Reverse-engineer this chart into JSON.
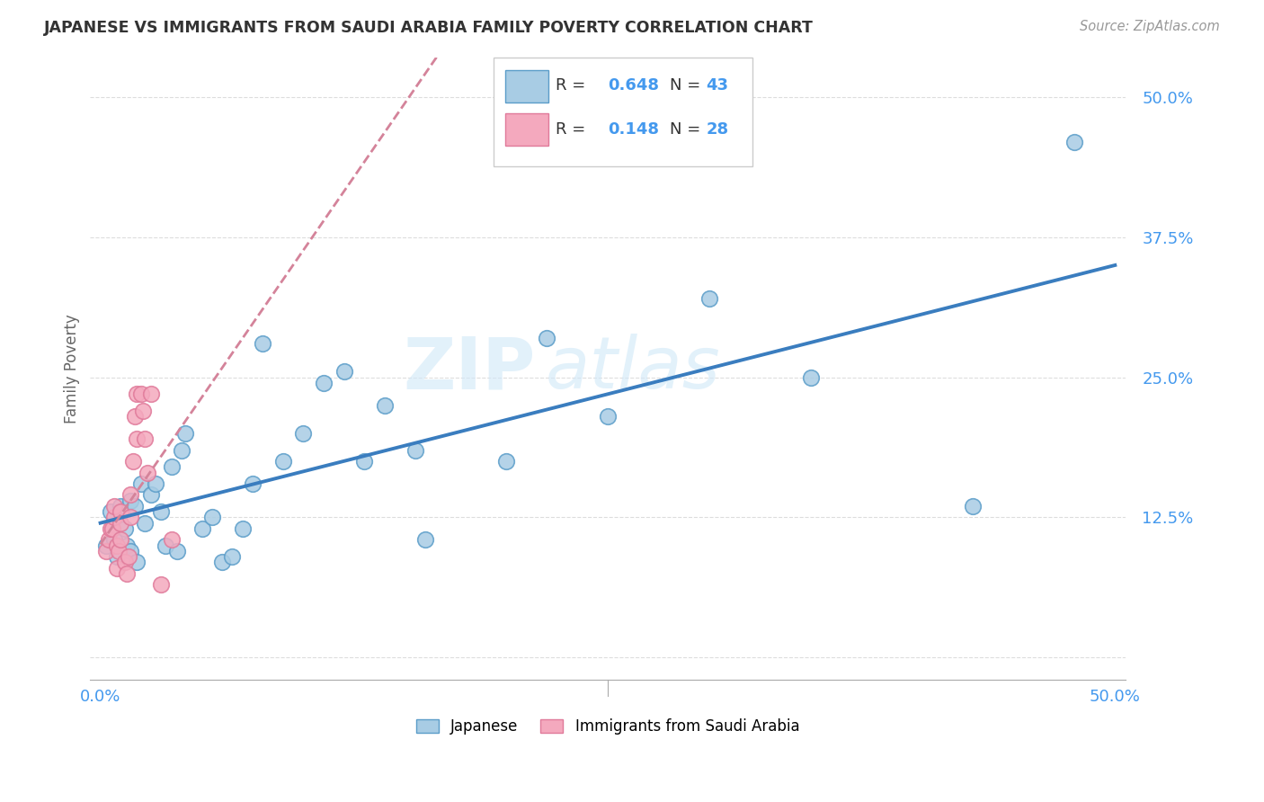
{
  "title": "JAPANESE VS IMMIGRANTS FROM SAUDI ARABIA FAMILY POVERTY CORRELATION CHART",
  "source": "Source: ZipAtlas.com",
  "ylabel": "Family Poverty",
  "watermark_part1": "ZIP",
  "watermark_part2": "atlas",
  "legend1_label": "Japanese",
  "legend2_label": "Immigrants from Saudi Arabia",
  "R1": 0.648,
  "N1": 43,
  "R2": 0.148,
  "N2": 28,
  "xlim": [
    -0.005,
    0.505
  ],
  "ylim": [
    -0.02,
    0.535
  ],
  "yticks": [
    0.0,
    0.125,
    0.25,
    0.375,
    0.5
  ],
  "ytick_labels": [
    "",
    "12.5%",
    "25.0%",
    "37.5%",
    "50.0%"
  ],
  "xticks": [
    0.0,
    0.125,
    0.25,
    0.375,
    0.5
  ],
  "xtick_labels": [
    "0.0%",
    "",
    "",
    "",
    "50.0%"
  ],
  "blue_scatter_color": "#a8cce4",
  "blue_edge_color": "#5b9dc9",
  "pink_scatter_color": "#f4a9be",
  "pink_edge_color": "#e07a9a",
  "blue_line_color": "#3a7dbf",
  "pink_line_color": "#d4839a",
  "grid_color": "#dddddd",
  "tick_label_color": "#4499ee",
  "japanese_x": [
    0.003,
    0.005,
    0.007,
    0.008,
    0.01,
    0.012,
    0.013,
    0.015,
    0.015,
    0.017,
    0.018,
    0.02,
    0.022,
    0.025,
    0.027,
    0.03,
    0.032,
    0.035,
    0.038,
    0.04,
    0.042,
    0.05,
    0.055,
    0.06,
    0.065,
    0.07,
    0.075,
    0.08,
    0.09,
    0.1,
    0.11,
    0.12,
    0.13,
    0.14,
    0.155,
    0.16,
    0.2,
    0.22,
    0.25,
    0.3,
    0.35,
    0.43,
    0.48
  ],
  "japanese_y": [
    0.1,
    0.13,
    0.105,
    0.09,
    0.135,
    0.115,
    0.1,
    0.14,
    0.095,
    0.135,
    0.085,
    0.155,
    0.12,
    0.145,
    0.155,
    0.13,
    0.1,
    0.17,
    0.095,
    0.185,
    0.2,
    0.115,
    0.125,
    0.085,
    0.09,
    0.115,
    0.155,
    0.28,
    0.175,
    0.2,
    0.245,
    0.255,
    0.175,
    0.225,
    0.185,
    0.105,
    0.175,
    0.285,
    0.215,
    0.32,
    0.25,
    0.135,
    0.46
  ],
  "saudi_x": [
    0.003,
    0.004,
    0.005,
    0.006,
    0.007,
    0.007,
    0.008,
    0.008,
    0.009,
    0.01,
    0.01,
    0.01,
    0.012,
    0.013,
    0.014,
    0.015,
    0.015,
    0.016,
    0.017,
    0.018,
    0.018,
    0.02,
    0.021,
    0.022,
    0.023,
    0.025,
    0.03,
    0.035
  ],
  "saudi_y": [
    0.095,
    0.105,
    0.115,
    0.115,
    0.125,
    0.135,
    0.1,
    0.08,
    0.095,
    0.13,
    0.12,
    0.105,
    0.085,
    0.075,
    0.09,
    0.145,
    0.125,
    0.175,
    0.215,
    0.235,
    0.195,
    0.235,
    0.22,
    0.195,
    0.165,
    0.235,
    0.065,
    0.105
  ]
}
